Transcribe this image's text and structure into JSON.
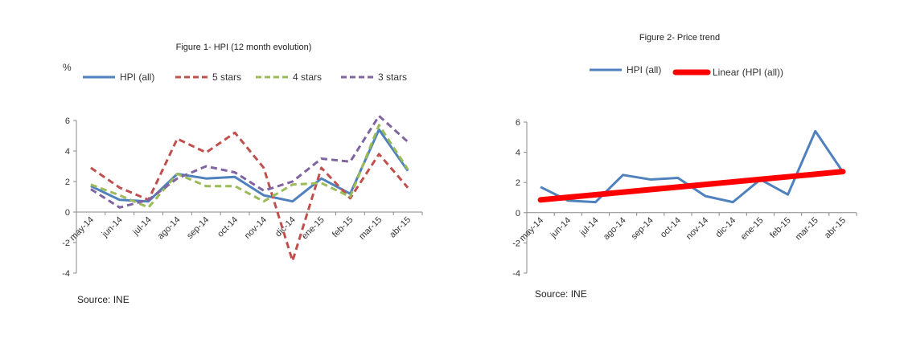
{
  "chart_data": [
    {
      "type": "line",
      "title": "Figure 1- HPI (12 month evolution)",
      "ylabel": "%",
      "source": "Source: INE",
      "categories": [
        "may-14",
        "jun-14",
        "jul-14",
        "ago-14",
        "sep-14",
        "oct-14",
        "nov-14",
        "dic-14",
        "ene-15",
        "feb-15",
        "mar-15",
        "abr-15"
      ],
      "ylim": [
        -4,
        6
      ],
      "yticks": [
        -4,
        -2,
        0,
        2,
        4,
        6
      ],
      "legend_position": "top",
      "grid": false,
      "series": [
        {
          "name": "HPI (all)",
          "color": "#4f81bd",
          "dash": "solid",
          "values": [
            1.7,
            0.8,
            0.7,
            2.5,
            2.2,
            2.3,
            1.1,
            0.7,
            2.2,
            1.2,
            5.4,
            2.7
          ]
        },
        {
          "name": "5 stars",
          "color": "#c0504d",
          "dash": "dashed",
          "values": [
            2.9,
            1.6,
            0.8,
            4.8,
            3.9,
            5.2,
            2.9,
            -3.2,
            2.9,
            0.9,
            3.8,
            1.6
          ]
        },
        {
          "name": "4 stars",
          "color": "#9bbb59",
          "dash": "dashed",
          "values": [
            1.8,
            1.1,
            0.3,
            2.5,
            1.7,
            1.7,
            0.7,
            1.8,
            1.9,
            1.0,
            5.7,
            2.8
          ]
        },
        {
          "name": "3 stars",
          "color": "#8064a2",
          "dash": "dashed",
          "values": [
            1.5,
            0.3,
            0.8,
            2.2,
            3.0,
            2.6,
            1.4,
            2.0,
            3.5,
            3.3,
            6.3,
            4.6
          ]
        }
      ]
    },
    {
      "type": "line",
      "title": "Figure 2- Price trend",
      "source": "Source: INE",
      "categories": [
        "may-14",
        "jun-14",
        "jul-14",
        "ago-14",
        "sep-14",
        "oct-14",
        "nov-14",
        "dic-14",
        "ene-15",
        "feb-15",
        "mar-15",
        "abr-15"
      ],
      "ylim": [
        -4,
        6
      ],
      "yticks": [
        -4,
        -2,
        0,
        2,
        4,
        6
      ],
      "legend_position": "top",
      "grid": false,
      "series": [
        {
          "name": "HPI (all)",
          "color": "#4f81bd",
          "dash": "solid",
          "values": [
            1.7,
            0.8,
            0.7,
            2.5,
            2.2,
            2.3,
            1.1,
            0.7,
            2.2,
            1.2,
            5.4,
            2.7
          ]
        },
        {
          "name": "Linear (HPI (all))",
          "color": "#ff0000",
          "dash": "solid",
          "thick": true,
          "values": [
            0.85,
            1.02,
            1.19,
            1.36,
            1.53,
            1.7,
            1.87,
            2.04,
            2.21,
            2.38,
            2.55,
            2.72
          ]
        }
      ]
    }
  ]
}
